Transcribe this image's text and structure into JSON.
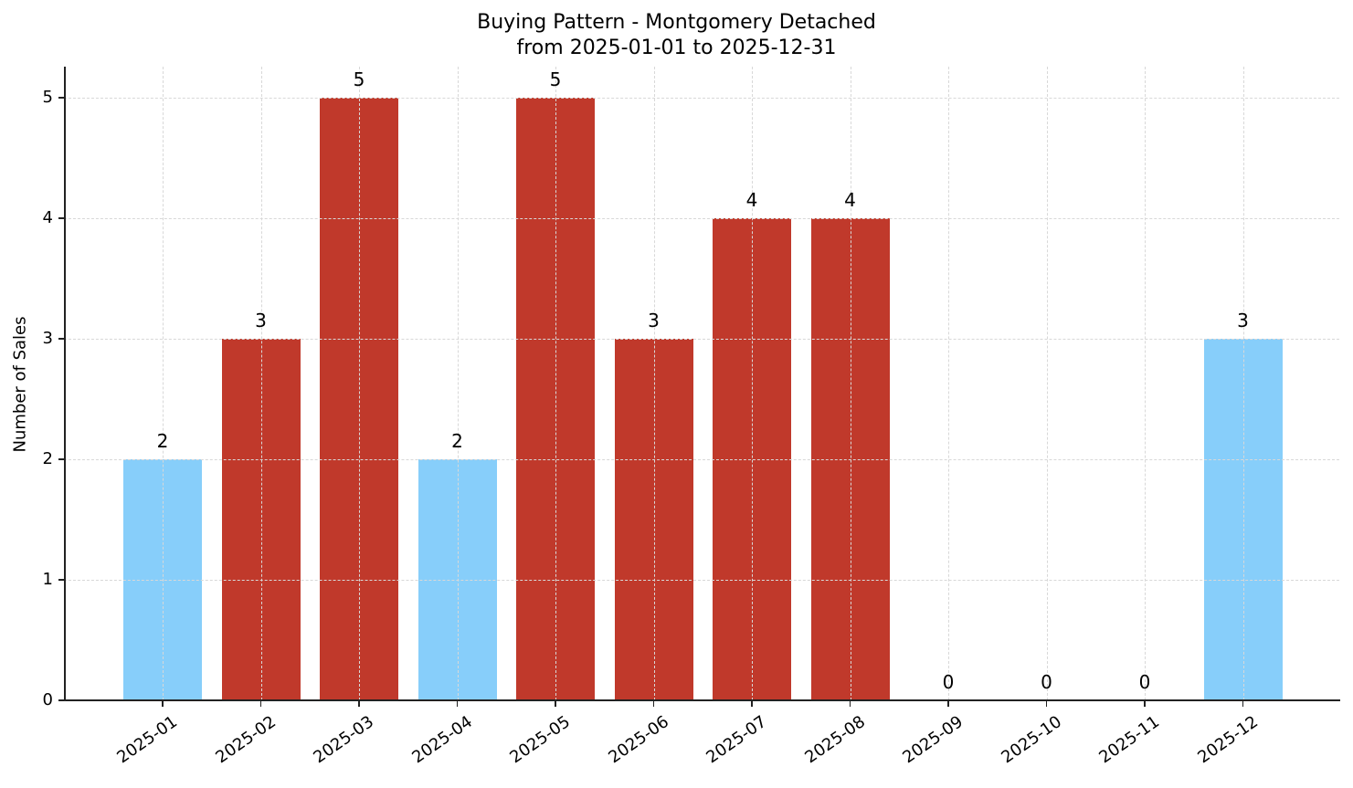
{
  "chart_data": {
    "type": "bar",
    "title": "Buying Pattern - Montgomery Detached",
    "subtitle": "from 2025-01-01 to 2025-12-31",
    "xlabel": "",
    "ylabel": "Number of Sales",
    "categories": [
      "2025-01",
      "2025-02",
      "2025-03",
      "2025-04",
      "2025-05",
      "2025-06",
      "2025-07",
      "2025-08",
      "2025-09",
      "2025-10",
      "2025-11",
      "2025-12"
    ],
    "values": [
      2,
      3,
      5,
      2,
      5,
      3,
      4,
      4,
      0,
      0,
      0,
      3
    ],
    "bar_colors": [
      "#87CEFA",
      "#C0392B",
      "#C0392B",
      "#87CEFA",
      "#C0392B",
      "#C0392B",
      "#C0392B",
      "#C0392B",
      "#C0392B",
      "#C0392B",
      "#C0392B",
      "#87CEFA"
    ],
    "yticks": [
      "0",
      "1",
      "2",
      "3",
      "4",
      "5"
    ],
    "ylim": [
      0,
      5.25
    ],
    "grid": true,
    "grid_style": "dashed",
    "legend": null,
    "colors": {
      "high": "#C0392B",
      "low": "#87CEFA"
    }
  }
}
